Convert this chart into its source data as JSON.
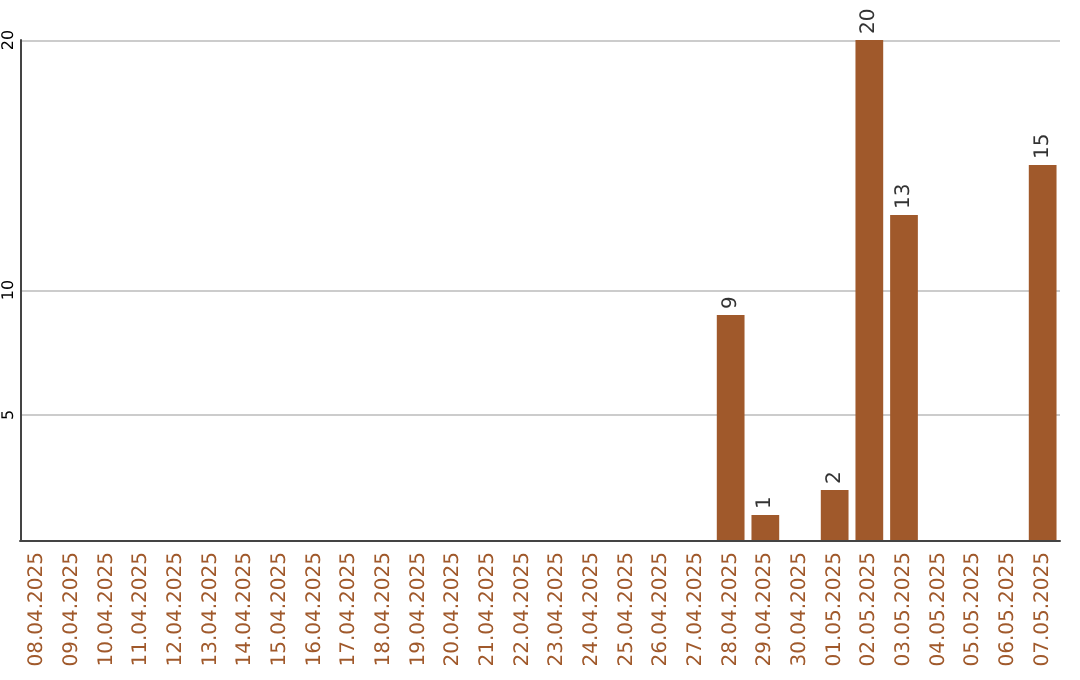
{
  "chart_data": {
    "type": "bar",
    "categories": [
      "08.04.2025",
      "09.04.2025",
      "10.04.2025",
      "11.04.2025",
      "12.04.2025",
      "13.04.2025",
      "14.04.2025",
      "15.04.2025",
      "16.04.2025",
      "17.04.2025",
      "18.04.2025",
      "19.04.2025",
      "20.04.2025",
      "21.04.2025",
      "22.04.2025",
      "23.04.2025",
      "24.04.2025",
      "25.04.2025",
      "26.04.2025",
      "27.04.2025",
      "28.04.2025",
      "29.04.2025",
      "30.04.2025",
      "01.05.2025",
      "02.05.2025",
      "03.05.2025",
      "04.05.2025",
      "05.05.2025",
      "06.05.2025",
      "07.05.2025"
    ],
    "values": [
      0,
      0,
      0,
      0,
      0,
      0,
      0,
      0,
      0,
      0,
      0,
      0,
      0,
      0,
      0,
      0,
      0,
      0,
      0,
      0,
      9,
      1,
      0,
      2,
      20,
      13,
      0,
      0,
      0,
      15
    ],
    "value_labels": [
      null,
      null,
      null,
      null,
      null,
      null,
      null,
      null,
      null,
      null,
      null,
      null,
      null,
      null,
      null,
      null,
      null,
      null,
      null,
      null,
      "9",
      "1",
      null,
      "2",
      "20",
      "13",
      null,
      null,
      null,
      "15"
    ],
    "color": "#a0592b",
    "ylim": [
      0,
      20
    ],
    "yticks": [
      5,
      10,
      20
    ],
    "grid": "y"
  }
}
